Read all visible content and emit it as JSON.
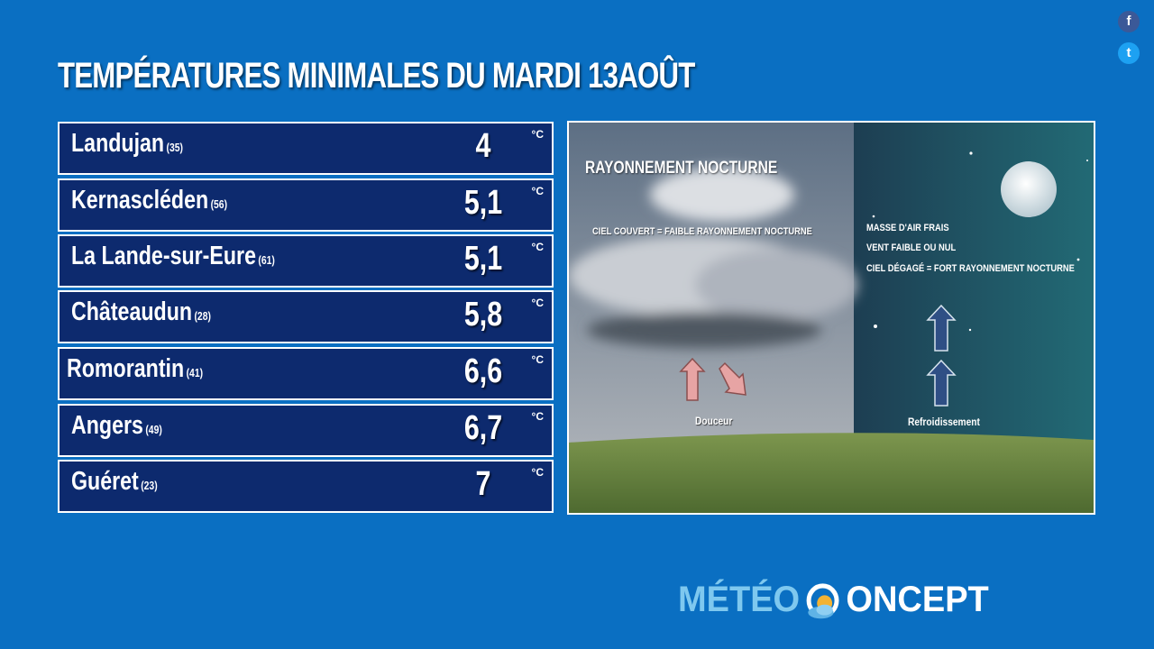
{
  "header": {
    "title": "TEMPÉRATURES MINIMALES DU MARDI 13AOÛT"
  },
  "social": {
    "facebook_icon": "facebook-icon",
    "twitter_icon": "twitter-icon"
  },
  "unit": "°C",
  "rows": [
    {
      "city": "Landujan",
      "dept": "(35)",
      "temp": "4"
    },
    {
      "city": "Kernascléden",
      "dept": "(56)",
      "temp": "5,1"
    },
    {
      "city": "La Lande-sur-Eure",
      "dept": "(61)",
      "temp": "5,1"
    },
    {
      "city": "Châteaudun",
      "dept": "(28)",
      "temp": "5,8"
    },
    {
      "city": "Romorantin",
      "dept": "(41)",
      "temp": "6,6"
    },
    {
      "city": "Angers",
      "dept": "(49)",
      "temp": "6,7"
    },
    {
      "city": "Guéret",
      "dept": "(23)",
      "temp": "7"
    }
  ],
  "diagram": {
    "title": "RAYONNEMENT NOCTURNE",
    "left_caption": "CIEL COUVERT = FAIBLE RAYONNEMENT NOCTURNE",
    "right_lines": [
      "MASSE D'AIR FRAIS",
      "VENT FAIBLE OU NUL",
      "CIEL DÉGAGÉ = FORT RAYONNEMENT NOCTURNE"
    ],
    "left_label": "Douceur",
    "right_label": "Refroidissement"
  },
  "brand": {
    "part1": "MÉTÉO",
    "part2": "ONCEPT"
  },
  "colors": {
    "background": "#0a6fc2",
    "row_bg": "#0d2a6e",
    "warm_arrow": "#e7a4a4",
    "cold_arrow": "#2f4f85"
  }
}
